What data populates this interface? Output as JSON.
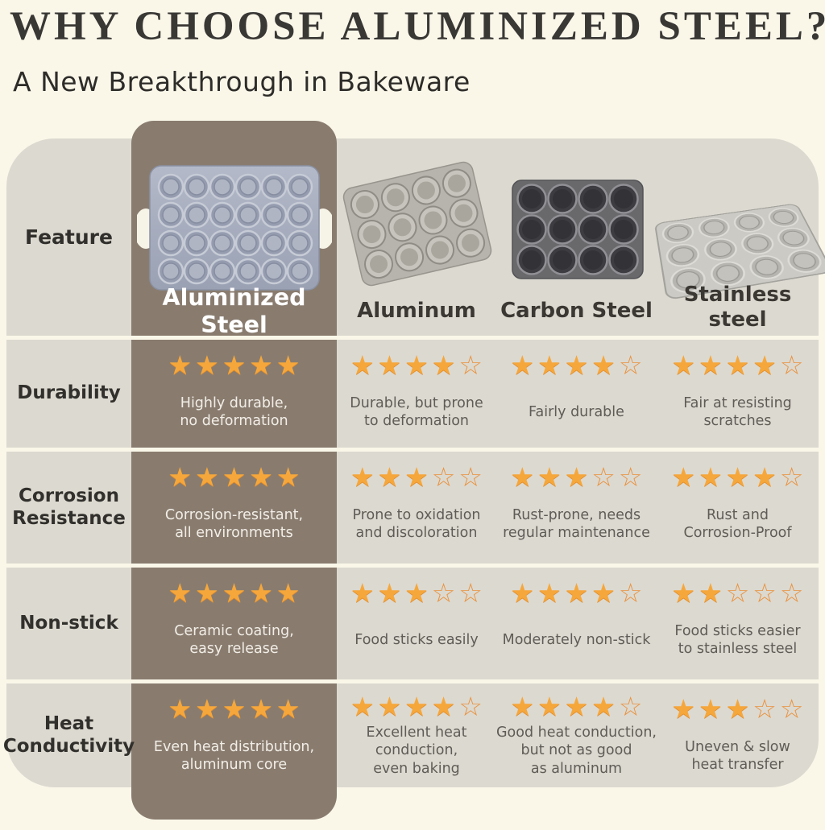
{
  "header": {
    "title": "WHY CHOOSE ALUMINIZED STEEL?",
    "subtitle": "A New Breakthrough in Bakeware"
  },
  "table": {
    "feature_label": "Feature",
    "columns": [
      {
        "label": "Aluminized Steel",
        "image": "aluminized-steel-24-cup-mini-muffin-pan",
        "highlighted": true
      },
      {
        "label": "Aluminum",
        "image": "aluminum-12-cup-muffin-pan",
        "highlighted": false
      },
      {
        "label": "Carbon Steel",
        "image": "carbon-steel-12-cup-muffin-pan",
        "highlighted": false
      },
      {
        "label": "Stainless\nsteel",
        "image": "stainless-steel-12-cup-muffin-pan",
        "highlighted": false
      }
    ],
    "rows": [
      {
        "feature": "Durability",
        "cells": [
          {
            "stars": 5,
            "text": "Highly durable,\nno deformation"
          },
          {
            "stars": 4,
            "text": "Durable, but prone\nto deformation"
          },
          {
            "stars": 4,
            "text": "Fairly durable"
          },
          {
            "stars": 4,
            "text": "Fair at resisting\nscratches"
          }
        ]
      },
      {
        "feature": "Corrosion\nResistance",
        "cells": [
          {
            "stars": 5,
            "text": "Corrosion-resistant,\nall environments"
          },
          {
            "stars": 3,
            "text": "Prone to oxidation\nand discoloration"
          },
          {
            "stars": 3,
            "text": "Rust-prone, needs\nregular maintenance"
          },
          {
            "stars": 4,
            "text": "Rust and\nCorrosion-Proof"
          }
        ]
      },
      {
        "feature": "Non-stick",
        "cells": [
          {
            "stars": 5,
            "text": "Ceramic coating,\neasy release"
          },
          {
            "stars": 3,
            "text": "Food sticks easily"
          },
          {
            "stars": 4,
            "text": "Moderately non-stick"
          },
          {
            "stars": 2,
            "text": "Food sticks easier\nto stainless steel"
          }
        ]
      },
      {
        "feature": "Heat\nConductivity",
        "cells": [
          {
            "stars": 5,
            "text": "Even heat distribution,\naluminum core"
          },
          {
            "stars": 4,
            "text": "Excellent heat\nconduction,\neven baking"
          },
          {
            "stars": 4,
            "text": "Good heat conduction,\nbut not as good\nas aluminum"
          },
          {
            "stars": 3,
            "text": "Uneven & slow\nheat transfer"
          }
        ]
      }
    ]
  },
  "colors": {
    "page_background": "#FAF7E9",
    "band_background": "#DCD9D0",
    "highlight_column": "#897C6F",
    "star_filled": "#F6A73B",
    "star_outline": "#E9923E",
    "title_text": "#3A3835",
    "body_text": "#5F5C57",
    "highlight_text": "#F2EEE7"
  },
  "chart_data": {
    "type": "table",
    "title": "WHY CHOOSE ALUMINIZED STEEL?",
    "subtitle": "A New Breakthrough in Bakeware",
    "columns": [
      "Feature",
      "Aluminized Steel",
      "Aluminum",
      "Carbon Steel",
      "Stainless steel"
    ],
    "star_scale": 5,
    "rows": [
      {
        "feature": "Durability",
        "ratings": [
          5,
          4,
          4,
          4
        ],
        "notes": [
          "Highly durable, no deformation",
          "Durable, but prone to deformation",
          "Fairly durable",
          "Fair at resisting scratches"
        ]
      },
      {
        "feature": "Corrosion Resistance",
        "ratings": [
          5,
          3,
          3,
          4
        ],
        "notes": [
          "Corrosion-resistant, all environments",
          "Prone to oxidation and discoloration",
          "Rust-prone, needs regular maintenance",
          "Rust and Corrosion-Proof"
        ]
      },
      {
        "feature": "Non-stick",
        "ratings": [
          5,
          3,
          4,
          2
        ],
        "notes": [
          "Ceramic coating, easy release",
          "Food sticks easily",
          "Moderately non-stick",
          "Food sticks easier to stainless steel"
        ]
      },
      {
        "feature": "Heat Conductivity",
        "ratings": [
          5,
          4,
          4,
          3
        ],
        "notes": [
          "Even heat distribution, aluminum core",
          "Excellent heat conduction, even baking",
          "Good heat conduction, but not as good as aluminum",
          "Uneven & slow heat transfer"
        ]
      }
    ]
  }
}
